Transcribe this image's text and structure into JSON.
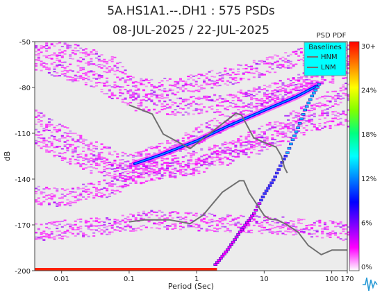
{
  "chart_data": {
    "type": "heatmap",
    "title": "5A.HS1A1.--.DH1 : 575 PSDs",
    "subtitle": "08-JUL-2025 / 22-JUL-2025",
    "xlabel": "Period (Sec)",
    "ylabel": "dB",
    "x_scale": "log",
    "xlim": [
      0.004,
      170
    ],
    "ylim": [
      -200,
      -50
    ],
    "x_ticks": [
      0.01,
      0.1,
      1,
      10,
      100,
      170
    ],
    "x_tick_labels": [
      "0.01",
      "0.1",
      "1",
      "10",
      "100",
      "170"
    ],
    "y_ticks": [
      -200,
      -170,
      -140,
      -110,
      -80,
      -50
    ],
    "y_tick_labels": [
      "-200",
      "-170",
      "-140",
      "-110",
      "-80",
      "-50"
    ],
    "colorbar": {
      "title": "PSD PDF",
      "ticks": [
        "30+",
        "24%",
        "18%",
        "12%",
        "6%",
        "0%"
      ],
      "stops": [
        "#ff0000",
        "#ff8000",
        "#ffff00",
        "#80ff00",
        "#00ff80",
        "#00ffff",
        "#0080ff",
        "#0000ff",
        "#8000ff",
        "#ff00ff",
        "#ffffff"
      ]
    },
    "legend": {
      "title": "Baselines",
      "entries": [
        "HNM",
        "LNM"
      ],
      "placement": "top-right",
      "background": "#00ffff"
    },
    "baselines": {
      "HNM": {
        "x": [
          0.1,
          0.22,
          0.32,
          0.8,
          3.8,
          4.6,
          5,
          7,
          10,
          15,
          18,
          20,
          22
        ],
        "y": [
          -91.5,
          -97.4,
          -110.5,
          -120,
          -97,
          -98,
          -101,
          -113,
          -116,
          -119,
          -125,
          -132.5,
          -136
        ]
      },
      "LNM": {
        "x": [
          0.1,
          0.17,
          0.4,
          0.8,
          1.24,
          2.4,
          4.3,
          5,
          6,
          10,
          12,
          15.6,
          21.9,
          31.6,
          45,
          70,
          101,
          154,
          170
        ],
        "y": [
          -168,
          -166.7,
          -166.7,
          -169.2,
          -163.7,
          -148.6,
          -141.1,
          -141.1,
          -149,
          -163.8,
          -166.2,
          -166.7,
          -170,
          -174.6,
          -183.5,
          -189.5,
          -186.5,
          -186.5,
          -186.5
        ]
      }
    },
    "density_bands": [
      {
        "x": [
          0.004,
          0.03,
          0.12,
          0.5,
          2,
          10,
          50,
          170
        ],
        "y": [
          -62,
          -75,
          -89,
          -92,
          -90,
          -84,
          -74,
          -68
        ]
      },
      {
        "x": [
          0.004,
          0.02,
          0.06,
          0.12,
          0.5,
          3,
          20,
          90,
          170
        ],
        "y": [
          -52,
          -58,
          -66,
          -80,
          -79,
          -72,
          -62,
          -56,
          -54
        ]
      },
      {
        "x": [
          0.004,
          0.02,
          0.06,
          0.1,
          0.5,
          3,
          20,
          80,
          170
        ],
        "y": [
          -100,
          -118,
          -126,
          -129,
          -118,
          -100,
          -84,
          -70,
          -65
        ]
      },
      {
        "x": [
          0.004,
          0.02,
          0.06,
          0.12,
          0.5,
          3,
          20,
          80,
          170
        ],
        "y": [
          -113,
          -128,
          -135,
          -137,
          -130,
          -120,
          -104,
          -88,
          -82
        ]
      },
      {
        "x": [
          0.004,
          0.01,
          0.05,
          0.12,
          1,
          10,
          50,
          170
        ],
        "y": [
          -150,
          -152,
          -145,
          -137,
          -131,
          -116,
          -102,
          -100
        ]
      },
      {
        "x": [
          0.004,
          0.05,
          0.2,
          2,
          20,
          170
        ],
        "y": [
          -174,
          -170,
          -166,
          -168,
          -170,
          -174
        ]
      }
    ],
    "peak_ridge": {
      "x": [
        0.12,
        0.3,
        1,
        3,
        10,
        30,
        60
      ],
      "y": [
        -130,
        -124,
        -115,
        -105,
        -95,
        -86,
        -79
      ]
    },
    "spike_trail": {
      "x": [
        1.9,
        2.8,
        4.5,
        7,
        10,
        14,
        18,
        22,
        26,
        32,
        40,
        52,
        65
      ],
      "y": [
        -196,
        -187,
        -174,
        -163,
        -150,
        -140,
        -130,
        -123,
        -115,
        -106,
        -95,
        -85,
        -78
      ]
    },
    "floor_value": -200
  }
}
